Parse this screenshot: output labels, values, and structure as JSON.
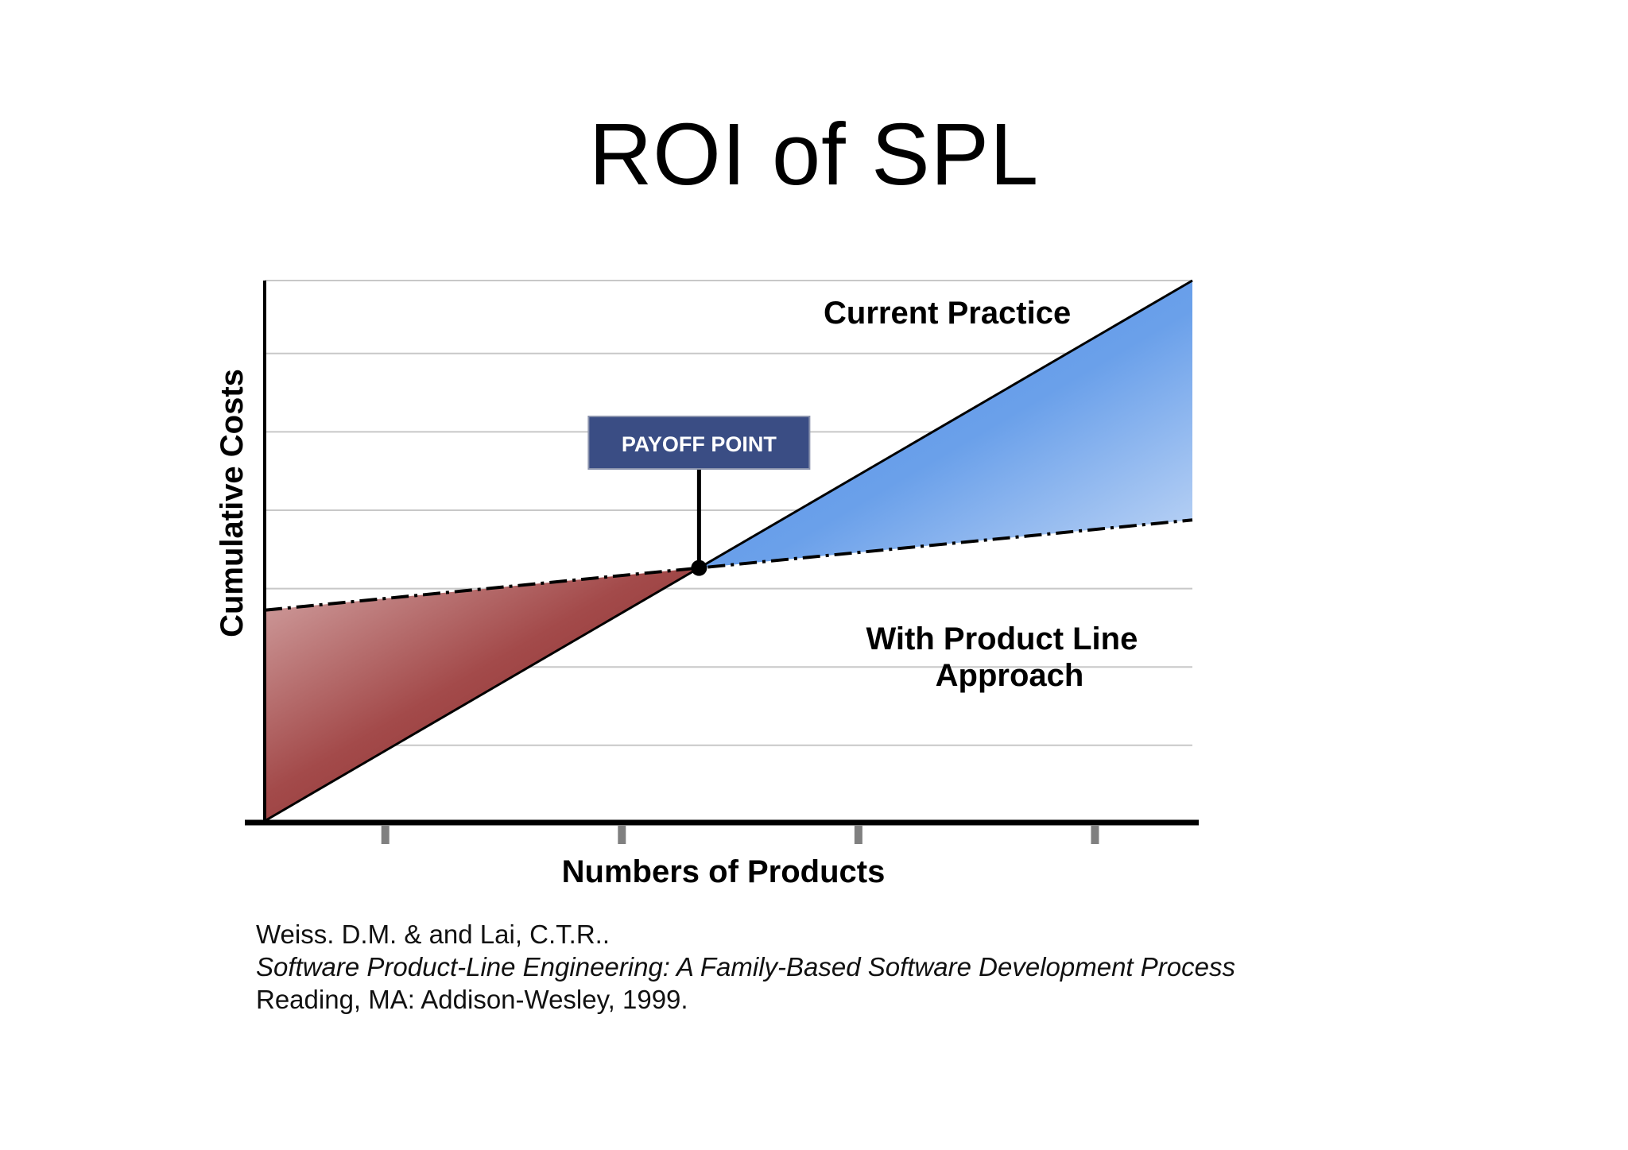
{
  "slide": {
    "title": "ROI of SPL"
  },
  "chart_data": {
    "type": "line",
    "xlabel": "Numbers of Products",
    "ylabel": "Cumulative Costs",
    "xlim": [
      0,
      1
    ],
    "ylim": [
      0,
      1
    ],
    "x_ticks": [
      0.13,
      0.385,
      0.64,
      0.895
    ],
    "grid": true,
    "grid_lines_y": [
      0.14,
      0.285,
      0.43,
      0.575,
      0.72,
      0.865,
      1.0
    ],
    "series": [
      {
        "name": "Current Practice",
        "style": "solid",
        "points": [
          [
            0,
            0
          ],
          [
            1,
            1
          ]
        ]
      },
      {
        "name": "With Product Line Approach",
        "style": "dash-dot",
        "points": [
          [
            0,
            0.39
          ],
          [
            1,
            0.557
          ]
        ]
      }
    ],
    "payoff_point": {
      "label": "PAYOFF POINT",
      "x": 0.469
    },
    "region_colors": {
      "before_payoff": "#8f2b2b",
      "after_payoff": "#5b96e3"
    },
    "label_box_color": "#3a4d84"
  },
  "citation": {
    "line1": "Weiss. D.M. &  and Lai, C.T.R..",
    "line2": "Software Product-Line Engineering: A Family-Based Software Development Process",
    "line3": "Reading, MA: Addison-Wesley, 1999."
  }
}
